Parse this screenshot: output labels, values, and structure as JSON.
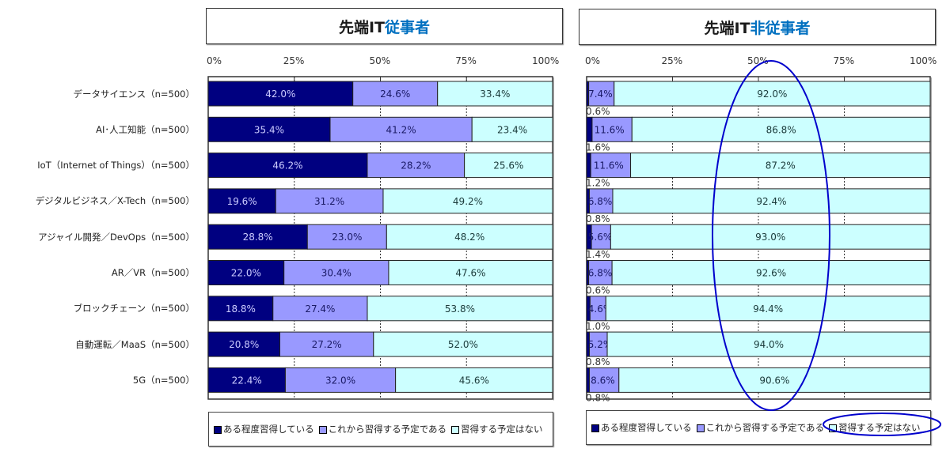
{
  "colors": {
    "learned": "#000080",
    "planning": "#9999ff",
    "no_plan": "#ccffff",
    "title_accent": "#0070c0",
    "highlight": "#0000cc"
  },
  "chart_data": [
    {
      "type": "bar",
      "orientation": "horizontal-stacked-100",
      "title_prefix": "先端IT",
      "title_accent": "従事者",
      "categories": [
        "データサイエンス（n=500）",
        "AI･人工知能（n=500）",
        "IoT（Internet of Things）（n=500）",
        "デジタルビジネス／X-Tech（n=500）",
        "アジャイル開発／DevOps（n=500）",
        "AR／VR（n=500）",
        "ブロックチェーン（n=500）",
        "自動運転／MaaS（n=500）",
        "5G（n=500）"
      ],
      "x_ticks": [
        "0%",
        "25%",
        "50%",
        "75%",
        "100%"
      ],
      "xlim": [
        0,
        100
      ],
      "series": [
        {
          "name": "ある程度習得している",
          "values": [
            42.0,
            35.4,
            46.2,
            19.6,
            28.8,
            22.0,
            18.8,
            20.8,
            22.4
          ],
          "labels": [
            "42.0%",
            "35.4%",
            "46.2%",
            "19.6%",
            "28.8%",
            "22.0%",
            "18.8%",
            "20.8%",
            "22.4%"
          ]
        },
        {
          "name": "これから習得する予定である",
          "values": [
            24.6,
            41.2,
            28.2,
            31.2,
            23.0,
            30.4,
            27.4,
            27.2,
            32.0
          ],
          "labels": [
            "24.6%",
            "41.2%",
            "28.2%",
            "31.2%",
            "23.0%",
            "30.4%",
            "27.4%",
            "27.2%",
            "32.0%"
          ]
        },
        {
          "name": "習得する予定はない",
          "values": [
            33.4,
            23.4,
            25.6,
            49.2,
            48.2,
            47.6,
            53.8,
            52.0,
            45.6
          ],
          "labels": [
            "33.4%",
            "23.4%",
            "25.6%",
            "49.2%",
            "48.2%",
            "47.6%",
            "53.8%",
            "52.0%",
            "45.6%"
          ]
        }
      ],
      "legend": [
        "ある程度習得している",
        "これから習得する予定である",
        "習得する予定はない"
      ],
      "legend_position": "bottom",
      "grid": "dotted vertical at 25% steps"
    },
    {
      "type": "bar",
      "orientation": "horizontal-stacked-100",
      "title_prefix": "先端IT",
      "title_accent": "非従事者",
      "categories": [
        "データサイエンス（n=500）",
        "AI･人工知能（n=500）",
        "IoT（Internet of Things）（n=500）",
        "デジタルビジネス／X-Tech（n=500）",
        "アジャイル開発／DevOps（n=500）",
        "AR／VR（n=500）",
        "ブロックチェーン（n=500）",
        "自動運転／MaaS（n=500）",
        "5G（n=500）"
      ],
      "x_ticks": [
        "0%",
        "25%",
        "50%",
        "75%",
        "100%"
      ],
      "xlim": [
        0,
        100
      ],
      "series": [
        {
          "name": "ある程度習得している",
          "values": [
            0.6,
            1.6,
            1.2,
            0.8,
            1.4,
            0.6,
            1.0,
            0.8,
            0.8
          ],
          "labels": [
            "0.6%",
            "1.6%",
            "1.2%",
            "0.8%",
            "1.4%",
            "0.6%",
            "1.0%",
            "0.8%",
            "0.8%"
          ]
        },
        {
          "name": "これから習得する予定である",
          "values": [
            7.4,
            11.6,
            11.6,
            6.8,
            5.6,
            6.8,
            4.6,
            5.2,
            8.6
          ],
          "labels": [
            "7.4%",
            "11.6%",
            "11.6%",
            "6.8%",
            "5.6%",
            "6.8%",
            "4.6%",
            "5.2%",
            "8.6%"
          ]
        },
        {
          "name": "習得する予定はない",
          "values": [
            92.0,
            86.8,
            87.2,
            92.4,
            93.0,
            92.6,
            94.4,
            94.0,
            90.6
          ],
          "labels": [
            "92.0%",
            "86.8%",
            "87.2%",
            "92.4%",
            "93.0%",
            "92.6%",
            "94.4%",
            "94.0%",
            "90.6%"
          ]
        }
      ],
      "legend": [
        "ある程度習得している",
        "これから習得する予定である",
        "習得する予定はない"
      ],
      "legend_position": "bottom",
      "annotations": [
        "highlight ellipse around 習得する予定はない column",
        "highlight ellipse around legend entry 習得する予定はない"
      ]
    }
  ]
}
